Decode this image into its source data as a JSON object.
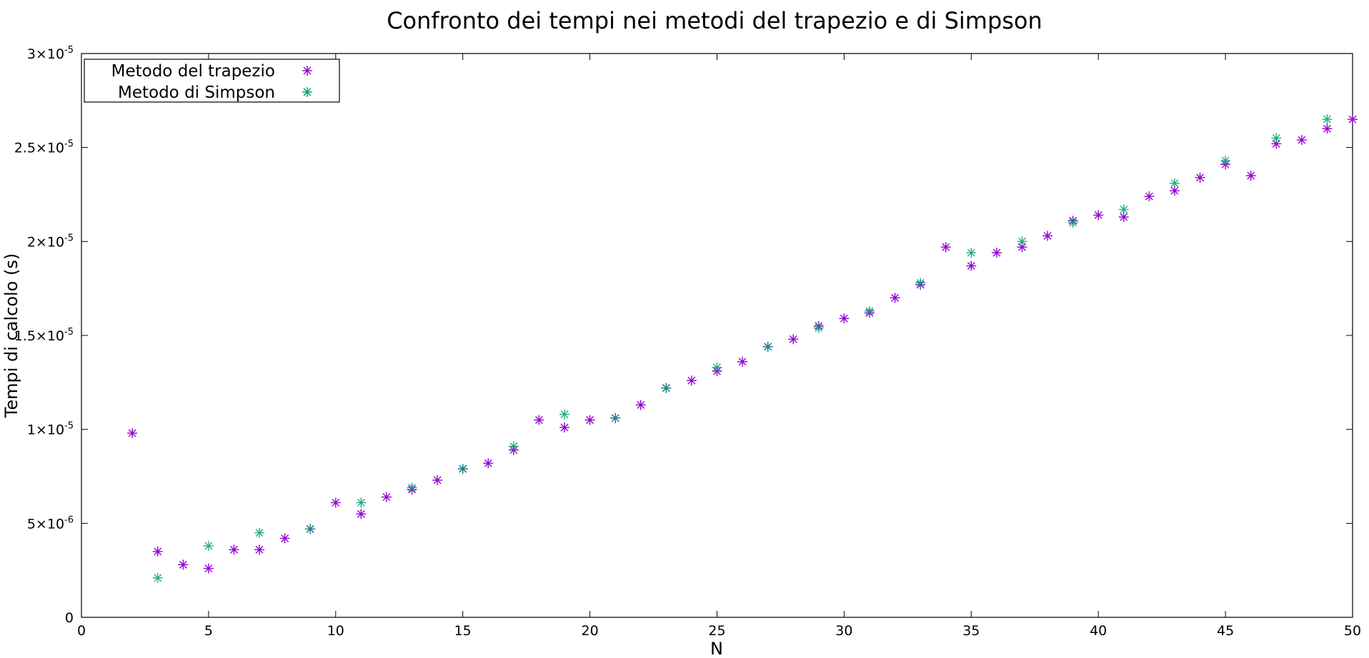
{
  "chart_data": {
    "type": "scatter",
    "title": "Confronto dei tempi nei metodi del trapezio e di Simpson",
    "xlabel": "N",
    "ylabel": "Tempi di calcolo (s)",
    "xlim": [
      0,
      50
    ],
    "ylim": [
      0,
      3e-05
    ],
    "x_ticks": [
      {
        "value": 0,
        "label": "0"
      },
      {
        "value": 5,
        "label": "5"
      },
      {
        "value": 10,
        "label": "10"
      },
      {
        "value": 15,
        "label": "15"
      },
      {
        "value": 20,
        "label": "20"
      },
      {
        "value": 25,
        "label": "25"
      },
      {
        "value": 30,
        "label": "30"
      },
      {
        "value": 35,
        "label": "35"
      },
      {
        "value": 40,
        "label": "40"
      },
      {
        "value": 45,
        "label": "45"
      },
      {
        "value": 50,
        "label": "50"
      }
    ],
    "y_ticks": [
      {
        "value": 0,
        "mantissa": "0",
        "exponent": ""
      },
      {
        "value": 5e-06,
        "mantissa": "5×10",
        "exponent": "-6"
      },
      {
        "value": 1e-05,
        "mantissa": "1×10",
        "exponent": "-5"
      },
      {
        "value": 1.5e-05,
        "mantissa": "1.5×10",
        "exponent": "-5"
      },
      {
        "value": 2e-05,
        "mantissa": "2×10",
        "exponent": "-5"
      },
      {
        "value": 2.5e-05,
        "mantissa": "2.5×10",
        "exponent": "-5"
      },
      {
        "value": 3e-05,
        "mantissa": "3×10",
        "exponent": "-5"
      }
    ],
    "grid": false,
    "legend_position": "top-left",
    "series": [
      {
        "name": "Metodo del trapezio",
        "color": "#9400d3",
        "marker": "asterisk",
        "points": [
          [
            2,
            9.8e-06
          ],
          [
            3,
            3.5e-06
          ],
          [
            4,
            2.8e-06
          ],
          [
            5,
            2.6e-06
          ],
          [
            6,
            3.6e-06
          ],
          [
            7,
            3.6e-06
          ],
          [
            8,
            4.2e-06
          ],
          [
            9,
            4.7e-06
          ],
          [
            10,
            6.1e-06
          ],
          [
            11,
            5.5e-06
          ],
          [
            12,
            6.4e-06
          ],
          [
            13,
            6.8e-06
          ],
          [
            14,
            7.3e-06
          ],
          [
            15,
            7.9e-06
          ],
          [
            16,
            8.2e-06
          ],
          [
            17,
            8.9e-06
          ],
          [
            18,
            1.05e-05
          ],
          [
            19,
            1.01e-05
          ],
          [
            20,
            1.05e-05
          ],
          [
            21,
            1.06e-05
          ],
          [
            22,
            1.13e-05
          ],
          [
            23,
            1.22e-05
          ],
          [
            24,
            1.26e-05
          ],
          [
            25,
            1.31e-05
          ],
          [
            26,
            1.36e-05
          ],
          [
            27,
            1.44e-05
          ],
          [
            28,
            1.48e-05
          ],
          [
            29,
            1.55e-05
          ],
          [
            30,
            1.59e-05
          ],
          [
            31,
            1.62e-05
          ],
          [
            32,
            1.7e-05
          ],
          [
            33,
            1.77e-05
          ],
          [
            34,
            1.97e-05
          ],
          [
            35,
            1.87e-05
          ],
          [
            36,
            1.94e-05
          ],
          [
            37,
            1.97e-05
          ],
          [
            38,
            2.03e-05
          ],
          [
            39,
            2.11e-05
          ],
          [
            40,
            2.14e-05
          ],
          [
            41,
            2.13e-05
          ],
          [
            42,
            2.24e-05
          ],
          [
            43,
            2.27e-05
          ],
          [
            44,
            2.34e-05
          ],
          [
            45,
            2.41e-05
          ],
          [
            46,
            2.35e-05
          ],
          [
            47,
            2.52e-05
          ],
          [
            48,
            2.54e-05
          ],
          [
            49,
            2.6e-05
          ],
          [
            50,
            2.65e-05
          ]
        ]
      },
      {
        "name": "Metodo di Simpson",
        "color": "#009e73",
        "marker": "asterisk",
        "points": [
          [
            3,
            2.1e-06
          ],
          [
            5,
            3.8e-06
          ],
          [
            7,
            4.5e-06
          ],
          [
            9,
            4.7e-06
          ],
          [
            11,
            6.1e-06
          ],
          [
            13,
            6.9e-06
          ],
          [
            15,
            7.9e-06
          ],
          [
            17,
            9.1e-06
          ],
          [
            19,
            1.08e-05
          ],
          [
            21,
            1.06e-05
          ],
          [
            23,
            1.22e-05
          ],
          [
            25,
            1.33e-05
          ],
          [
            27,
            1.44e-05
          ],
          [
            29,
            1.54e-05
          ],
          [
            31,
            1.63e-05
          ],
          [
            33,
            1.78e-05
          ],
          [
            35,
            1.94e-05
          ],
          [
            37,
            2e-05
          ],
          [
            39,
            2.1e-05
          ],
          [
            41,
            2.17e-05
          ],
          [
            43,
            2.31e-05
          ],
          [
            45,
            2.43e-05
          ],
          [
            47,
            2.55e-05
          ],
          [
            49,
            2.65e-05
          ]
        ]
      }
    ]
  }
}
